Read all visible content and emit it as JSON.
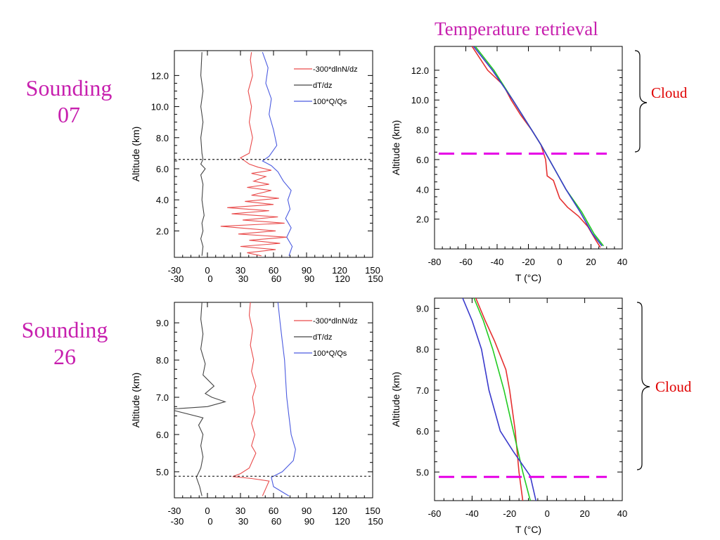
{
  "annotations": {
    "title": "Temperature retrieval",
    "sounding1": [
      "Sounding",
      "07"
    ],
    "sounding2": [
      "Sounding",
      "26"
    ],
    "cloud": "Cloud",
    "colors": {
      "magenta": "#c71fae",
      "cloud_red": "#e00000",
      "dash": "#e600e6"
    }
  },
  "chart_data": [
    {
      "id": "s07_profiles",
      "type": "line",
      "ylabel": "Altitude (km)",
      "xticks": [
        -30,
        0,
        30,
        60,
        90,
        120,
        150
      ],
      "yticks": [
        "2.0",
        "4.0",
        "6.0",
        "8.0",
        "10.0",
        "12.0"
      ],
      "xlim": [
        -30,
        150
      ],
      "ylim": [
        0.3,
        13.6
      ],
      "legend": [
        "-300*dlnN/dz",
        "dT/dz",
        "100*Q/Qs"
      ],
      "legend_position": "top-right",
      "cloud_base_km": 6.6,
      "series": [
        {
          "name": "-300*dlnN/dz",
          "color": "#e94b4b",
          "points": [
            [
              49,
              0.4
            ],
            [
              36,
              0.6
            ],
            [
              62,
              0.8
            ],
            [
              30,
              1.0
            ],
            [
              66,
              1.2
            ],
            [
              38,
              1.4
            ],
            [
              72,
              1.6
            ],
            [
              28,
              1.8
            ],
            [
              62,
              2.0
            ],
            [
              12,
              2.3
            ],
            [
              70,
              2.5
            ],
            [
              32,
              2.7
            ],
            [
              64,
              2.9
            ],
            [
              22,
              3.1
            ],
            [
              56,
              3.3
            ],
            [
              18,
              3.5
            ],
            [
              60,
              3.7
            ],
            [
              34,
              3.9
            ],
            [
              65,
              4.1
            ],
            [
              40,
              4.3
            ],
            [
              58,
              4.6
            ],
            [
              36,
              4.8
            ],
            [
              56,
              5.0
            ],
            [
              42,
              5.2
            ],
            [
              53,
              5.5
            ],
            [
              40,
              5.7
            ],
            [
              58,
              5.9
            ],
            [
              46,
              6.1
            ],
            [
              38,
              6.3
            ],
            [
              30,
              6.7
            ],
            [
              38,
              7.0
            ],
            [
              41,
              8.0
            ],
            [
              38,
              9.0
            ],
            [
              40,
              10.0
            ],
            [
              37,
              11.0
            ],
            [
              41,
              12.0
            ],
            [
              39,
              13.0
            ],
            [
              40,
              13.5
            ]
          ]
        },
        {
          "name": "dT/dz",
          "color": "#444444",
          "points": [
            [
              -5,
              0.4
            ],
            [
              -4,
              1.0
            ],
            [
              -6,
              1.5
            ],
            [
              -4,
              2.0
            ],
            [
              -5,
              2.5
            ],
            [
              -3,
              3.0
            ],
            [
              -5,
              4.0
            ],
            [
              -4,
              5.0
            ],
            [
              -6,
              5.6
            ],
            [
              -2,
              6.0
            ],
            [
              -6,
              6.3
            ],
            [
              -4,
              6.6
            ],
            [
              -5,
              7.0
            ],
            [
              -6,
              8.0
            ],
            [
              -4,
              9.0
            ],
            [
              -6,
              10.0
            ],
            [
              -4,
              11.0
            ],
            [
              -6,
              12.0
            ],
            [
              -5,
              13.5
            ]
          ]
        },
        {
          "name": "100*Q/Qs",
          "color": "#4b5be0",
          "points": [
            [
              74,
              0.4
            ],
            [
              77,
              1.0
            ],
            [
              72,
              1.6
            ],
            [
              76,
              2.2
            ],
            [
              71,
              2.8
            ],
            [
              75,
              3.4
            ],
            [
              73,
              4.0
            ],
            [
              76,
              4.6
            ],
            [
              69,
              5.2
            ],
            [
              64,
              5.8
            ],
            [
              58,
              6.2
            ],
            [
              50,
              6.5
            ],
            [
              56,
              6.8
            ],
            [
              63,
              7.5
            ],
            [
              60,
              8.5
            ],
            [
              56,
              9.5
            ],
            [
              58,
              10.5
            ],
            [
              53,
              11.5
            ],
            [
              55,
              12.5
            ],
            [
              50,
              13.5
            ]
          ]
        }
      ]
    },
    {
      "id": "s07_temperature",
      "type": "line",
      "xlabel": "T (°C)",
      "ylabel": "Altitude (km)",
      "xticks": [
        -80,
        -60,
        -40,
        -20,
        0,
        20,
        40
      ],
      "yticks": [
        "2.0",
        "4.0",
        "6.0",
        "8.0",
        "10.0",
        "12.0"
      ],
      "xlim": [
        -80,
        40
      ],
      "ylim": [
        0,
        13.6
      ],
      "cloud_base_km": 6.4,
      "series": [
        {
          "color": "#e53030",
          "points": [
            [
              26,
              0.1
            ],
            [
              23,
              0.6
            ],
            [
              18,
              1.5
            ],
            [
              12,
              2.2
            ],
            [
              5,
              2.8
            ],
            [
              0,
              3.4
            ],
            [
              -2,
              4.0
            ],
            [
              -4,
              4.6
            ],
            [
              -8,
              4.9
            ],
            [
              -9,
              6.0
            ],
            [
              -12,
              7.0
            ],
            [
              -18,
              8.0
            ],
            [
              -25,
              9.0
            ],
            [
              -31,
              10.0
            ],
            [
              -36,
              11.0
            ],
            [
              -46,
              12.0
            ],
            [
              -56,
              13.6
            ]
          ]
        },
        {
          "color": "#22cc22",
          "points": [
            [
              28,
              0.2
            ],
            [
              22,
              1.0
            ],
            [
              14,
              2.5
            ],
            [
              4,
              4.0
            ],
            [
              -4,
              5.5
            ],
            [
              -12,
              7.0
            ],
            [
              -18,
              8.0
            ],
            [
              -30,
              10.0
            ],
            [
              -42,
              12.0
            ],
            [
              -54,
              13.6
            ]
          ]
        },
        {
          "color": "#3a3acc",
          "points": [
            [
              27,
              0.2
            ],
            [
              21,
              1.0
            ],
            [
              13,
              2.5
            ],
            [
              4,
              4.0
            ],
            [
              -4,
              5.5
            ],
            [
              -12,
              7.0
            ],
            [
              -18,
              8.0
            ],
            [
              -30,
              10.0
            ],
            [
              -43,
              12.0
            ],
            [
              -55,
              13.6
            ]
          ]
        }
      ]
    },
    {
      "id": "s26_profiles",
      "type": "line",
      "ylabel": "Altitude (km)",
      "xticks": [
        -30,
        0,
        30,
        60,
        90,
        120,
        150
      ],
      "yticks": [
        "5.0",
        "6.0",
        "7.0",
        "8.0",
        "9.0"
      ],
      "xlim": [
        -30,
        150
      ],
      "ylim": [
        4.3,
        9.55
      ],
      "legend": [
        "-300*dlnN/dz",
        "dT/dz",
        "100*Q/Qs"
      ],
      "legend_position": "top-right",
      "cloud_base_km": 4.88,
      "series": [
        {
          "name": "-300*dlnN/dz",
          "color": "#e94b4b",
          "points": [
            [
              50,
              4.35
            ],
            [
              53,
              4.55
            ],
            [
              56,
              4.75
            ],
            [
              40,
              4.82
            ],
            [
              23,
              4.87
            ],
            [
              30,
              4.95
            ],
            [
              38,
              5.1
            ],
            [
              41,
              5.3
            ],
            [
              44,
              5.5
            ],
            [
              40,
              5.7
            ],
            [
              43,
              6.0
            ],
            [
              40,
              6.3
            ],
            [
              43,
              6.6
            ],
            [
              41,
              7.0
            ],
            [
              44,
              7.3
            ],
            [
              40,
              7.7
            ],
            [
              42,
              8.0
            ],
            [
              39,
              8.4
            ],
            [
              41,
              8.8
            ],
            [
              38,
              9.2
            ],
            [
              39,
              9.55
            ]
          ]
        },
        {
          "name": "dT/dz",
          "color": "#444444",
          "points": [
            [
              -5,
              4.35
            ],
            [
              -7,
              4.6
            ],
            [
              -10,
              4.85
            ],
            [
              -6,
              5.1
            ],
            [
              -4,
              5.4
            ],
            [
              -6,
              5.7
            ],
            [
              -4,
              6.0
            ],
            [
              -8,
              6.25
            ],
            [
              -4,
              6.45
            ],
            [
              -35,
              6.68
            ],
            [
              0,
              6.75
            ],
            [
              16,
              6.88
            ],
            [
              4,
              7.0
            ],
            [
              -2,
              7.1
            ],
            [
              6,
              7.3
            ],
            [
              -4,
              7.6
            ],
            [
              -2,
              7.9
            ],
            [
              -6,
              8.3
            ],
            [
              -4,
              8.7
            ],
            [
              -6,
              9.1
            ],
            [
              -5,
              9.55
            ]
          ]
        },
        {
          "name": "100*Q/Qs",
          "color": "#4b5be0",
          "points": [
            [
              74,
              4.35
            ],
            [
              60,
              4.6
            ],
            [
              58,
              4.85
            ],
            [
              68,
              5.0
            ],
            [
              78,
              5.3
            ],
            [
              80,
              5.6
            ],
            [
              76,
              6.0
            ],
            [
              74,
              6.5
            ],
            [
              72,
              7.0
            ],
            [
              71,
              7.5
            ],
            [
              70,
              8.0
            ],
            [
              68,
              8.5
            ],
            [
              66,
              9.0
            ],
            [
              64,
              9.55
            ]
          ]
        }
      ]
    },
    {
      "id": "s26_temperature",
      "type": "line",
      "xlabel": "T (°C)",
      "ylabel": "Altitude (km)",
      "xticks": [
        -60,
        -40,
        -20,
        0,
        20,
        40
      ],
      "yticks": [
        "5.0",
        "6.0",
        "7.0",
        "8.0",
        "9.0"
      ],
      "xlim": [
        -60,
        40
      ],
      "ylim": [
        4.3,
        9.25
      ],
      "cloud_base_km": 4.88,
      "series": [
        {
          "color": "#e53030",
          "points": [
            [
              -13,
              4.3
            ],
            [
              -15,
              5.0
            ],
            [
              -17,
              6.0
            ],
            [
              -20,
              7.0
            ],
            [
              -22,
              7.5
            ],
            [
              -28,
              8.2
            ],
            [
              -33,
              8.7
            ],
            [
              -38,
              9.25
            ]
          ]
        },
        {
          "color": "#22cc22",
          "points": [
            [
              -9,
              4.3
            ],
            [
              -13,
              5.0
            ],
            [
              -18,
              6.0
            ],
            [
              -23,
              7.0
            ],
            [
              -29,
              8.0
            ],
            [
              -34,
              8.7
            ],
            [
              -39,
              9.25
            ]
          ]
        },
        {
          "color": "#3a3acc",
          "points": [
            [
              -6,
              4.3
            ],
            [
              -9,
              4.9
            ],
            [
              -18,
              5.5
            ],
            [
              -25,
              6.0
            ],
            [
              -31,
              7.0
            ],
            [
              -35,
              8.0
            ],
            [
              -40,
              8.7
            ],
            [
              -45,
              9.25
            ]
          ]
        }
      ]
    }
  ]
}
